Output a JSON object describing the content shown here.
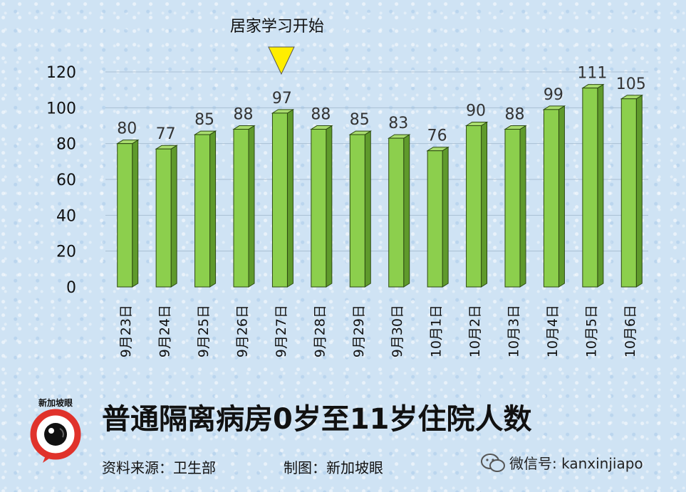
{
  "chart_data": {
    "type": "bar",
    "title": "普通隔离病房0岁至11岁住院人数",
    "categories": [
      "9月23日",
      "9月24日",
      "9月25日",
      "9月26日",
      "9月27日",
      "9月28日",
      "9月29日",
      "9月30日",
      "10月1日",
      "10月2日",
      "10月3日",
      "10月4日",
      "10月5日",
      "10月6日"
    ],
    "values": [
      80,
      77,
      85,
      88,
      97,
      88,
      85,
      83,
      76,
      90,
      88,
      99,
      111,
      105
    ],
    "ylim": [
      0,
      120
    ],
    "yticks": [
      0,
      20,
      40,
      60,
      80,
      100,
      120
    ],
    "grid": true,
    "bar_color": "#8ccf4d",
    "bar_top_color": "#a9dc6e",
    "bar_side_color": "#5f9a2c",
    "bar_edge_color": "#2d4a12",
    "annotation": {
      "text": "居家学习开始",
      "category": "9月27日",
      "marker_color": "#ffee00"
    }
  },
  "footer": {
    "source": "资料来源：卫生部",
    "credit": "制图：新加坡眼",
    "wechat": "微信号: kanxinjiapo"
  },
  "logo": {
    "text": "新加坡眼",
    "ring_color": "#e0322b"
  }
}
